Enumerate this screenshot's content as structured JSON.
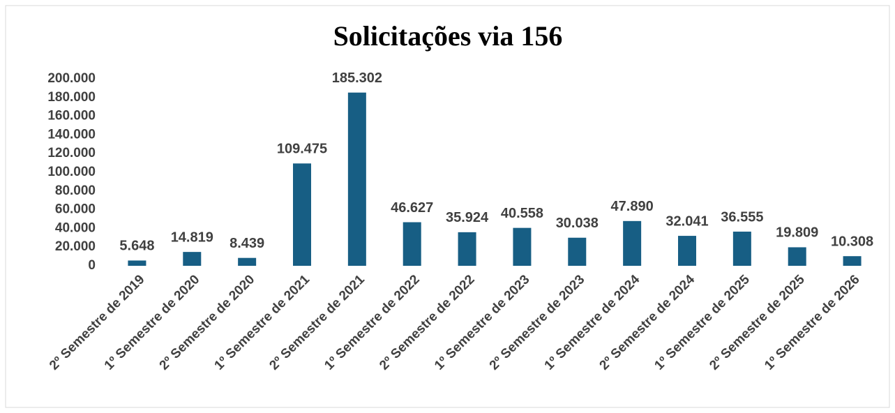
{
  "chart_data": {
    "type": "bar",
    "title": "Solicitações via 156",
    "categories": [
      "2º Semestre de 2019",
      "1º Semestre de 2020",
      "2º Semestre de 2020",
      "1º Semestre de 2021",
      "2º Semestre de 2021",
      "1º Semestre de 2022",
      "2º Semestre de 2022",
      "1º Semestre de 2023",
      "2º Semestre de 2023",
      "1º Semestre de 2024",
      "2º Semestre de 2024",
      "1º Semestre de 2025",
      "2º Semestre de 2025",
      "1º Semestre de 2026"
    ],
    "values": [
      5648,
      14819,
      8439,
      109475,
      185302,
      46627,
      35924,
      40558,
      30038,
      47890,
      32041,
      36555,
      19809,
      10308
    ],
    "value_labels": [
      "5.648",
      "14.819",
      "8.439",
      "109.475",
      "185.302",
      "46.627",
      "35.924",
      "40.558",
      "30.038",
      "47.890",
      "32.041",
      "36.555",
      "19.809",
      "10.308"
    ],
    "color": "#175e84",
    "ylim": [
      0,
      200000
    ],
    "yticks": [
      0,
      {
        "value": 20000,
        "label": "20.000"
      },
      {
        "value": 40000,
        "label": "40.000"
      },
      {
        "value": 60000,
        "label": "60.000"
      },
      {
        "value": 80000,
        "label": "80.000"
      },
      {
        "value": 100000,
        "label": "100.000"
      },
      {
        "value": 120000,
        "label": "120.000"
      },
      {
        "value": 140000,
        "label": "140.000"
      },
      {
        "value": 160000,
        "label": "160.000"
      },
      {
        "value": 180000,
        "label": "180.000"
      },
      {
        "value": 200000,
        "label": "200.000"
      }
    ],
    "grid": false
  }
}
